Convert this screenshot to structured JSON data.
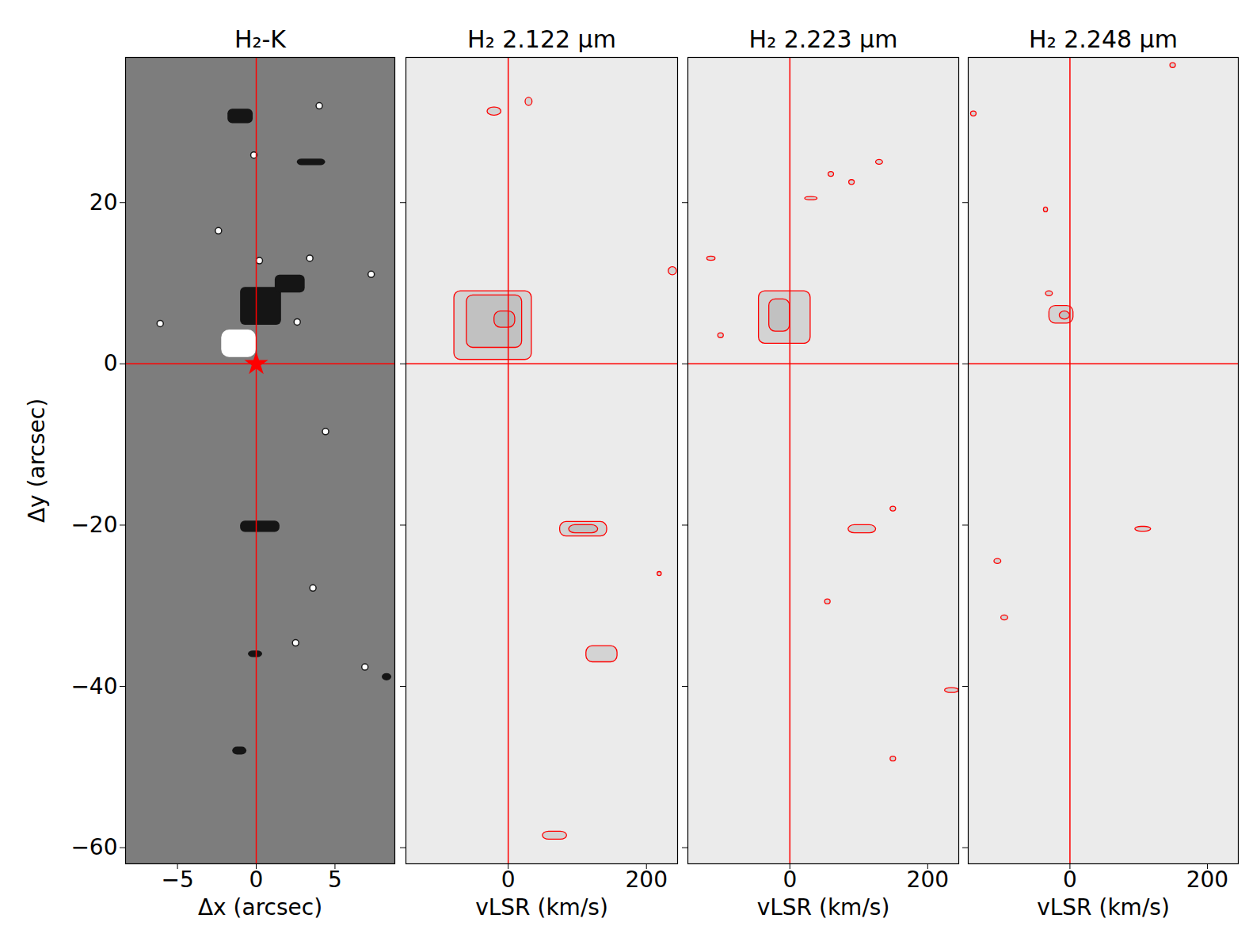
{
  "chart_data": [
    {
      "type": "image",
      "title": "H₂-K",
      "x_label": "Δx (arcsec)",
      "y_label": "Δy (arcsec)",
      "xlim": [
        -8.3,
        8.8
      ],
      "xticks": [
        -5,
        0,
        5
      ],
      "ylim": [
        -62,
        38
      ],
      "yticks": [
        -60,
        -40,
        -20,
        0,
        20
      ],
      "reference_x": 0,
      "reference_y": 0,
      "marker": "star",
      "dark_features": [
        {
          "x1": -1.8,
          "x2": -0.2,
          "y1": 29.8,
          "y2": 31.6
        },
        {
          "x1": 2.6,
          "x2": 4.4,
          "y1": 24.6,
          "y2": 25.4
        },
        {
          "x1": -1.0,
          "x2": 1.6,
          "y1": 4.8,
          "y2": 9.5
        },
        {
          "x1": 1.2,
          "x2": 3.1,
          "y1": 8.8,
          "y2": 11.0
        },
        {
          "x1": -1.0,
          "x2": 1.5,
          "y1": -20.9,
          "y2": -19.5
        },
        {
          "x1": -0.5,
          "x2": 0.4,
          "y1": -36.4,
          "y2": -35.6
        },
        {
          "x1": 8.0,
          "x2": 8.6,
          "y1": -39.3,
          "y2": -38.4
        },
        {
          "x1": -1.5,
          "x2": -0.6,
          "y1": -48.5,
          "y2": -47.5
        }
      ],
      "bright_features": [
        {
          "x1": -2.2,
          "x2": 0.0,
          "y1": 0.8,
          "y2": 4.2
        }
      ],
      "stars": [
        {
          "x": 4.0,
          "y": 32.0
        },
        {
          "x": -0.15,
          "y": 25.9
        },
        {
          "x": -2.4,
          "y": 16.5
        },
        {
          "x": 0.2,
          "y": 12.8
        },
        {
          "x": 3.4,
          "y": 13.1
        },
        {
          "x": 7.3,
          "y": 11.1
        },
        {
          "x": -6.1,
          "y": 5.0
        },
        {
          "x": 2.6,
          "y": 5.2
        },
        {
          "x": 4.4,
          "y": -8.4
        },
        {
          "x": 3.6,
          "y": -27.8
        },
        {
          "x": 2.5,
          "y": -34.6
        },
        {
          "x": 6.9,
          "y": -37.6
        }
      ]
    },
    {
      "type": "contour",
      "title": "H₂ 2.122 μm",
      "x_label": "vLSR (km/s)",
      "xlim": [
        -148,
        245
      ],
      "xticks": [
        0,
        200
      ],
      "ylim": [
        -62,
        38
      ],
      "yticks": [
        -60,
        -40,
        -20,
        0,
        20
      ],
      "tick_labels": "x",
      "reference_x": 0,
      "reference_y": 0,
      "contours": [
        {
          "x1": -78,
          "x2": 34,
          "y1": 0.5,
          "y2": 9.0
        },
        {
          "x1": -60,
          "x2": 20,
          "y1": 2.0,
          "y2": 8.5
        },
        {
          "x1": -20,
          "x2": 10,
          "y1": 4.5,
          "y2": 6.5
        },
        {
          "x1": -30,
          "x2": -10,
          "y1": 30.8,
          "y2": 31.8
        },
        {
          "x1": 25,
          "x2": 35,
          "y1": 32.0,
          "y2": 33.0
        },
        {
          "x1": 232,
          "x2": 244,
          "y1": 11.0,
          "y2": 12.0
        },
        {
          "x1": 75,
          "x2": 143,
          "y1": -21.4,
          "y2": -19.6
        },
        {
          "x1": 88,
          "x2": 130,
          "y1": -21.0,
          "y2": -20.0
        },
        {
          "x1": 113,
          "x2": 158,
          "y1": -37.0,
          "y2": -35.0
        },
        {
          "x1": 50,
          "x2": 85,
          "y1": -59.0,
          "y2": -58.0
        },
        {
          "x1": 216,
          "x2": 222,
          "y1": -26.3,
          "y2": -25.8
        }
      ]
    },
    {
      "type": "contour",
      "title": "H₂ 2.223 μm",
      "x_label": "vLSR (km/s)",
      "xlim": [
        -148,
        245
      ],
      "xticks": [
        0,
        200
      ],
      "ylim": [
        -62,
        38
      ],
      "yticks": [
        -60,
        -40,
        -20,
        0,
        20
      ],
      "tick_labels": "x",
      "reference_x": 0,
      "reference_y": 0,
      "contours": [
        {
          "x1": -45,
          "x2": 30,
          "y1": 2.5,
          "y2": 9.0
        },
        {
          "x1": -30,
          "x2": 0,
          "y1": 4.0,
          "y2": 8.0
        },
        {
          "x1": 85,
          "x2": 125,
          "y1": -21.0,
          "y2": -20.0
        },
        {
          "x1": -120,
          "x2": -108,
          "y1": 12.8,
          "y2": 13.3
        },
        {
          "x1": 22,
          "x2": 40,
          "y1": 20.3,
          "y2": 20.7
        },
        {
          "x1": 86,
          "x2": 94,
          "y1": 22.2,
          "y2": 22.8
        },
        {
          "x1": 125,
          "x2": 135,
          "y1": 24.7,
          "y2": 25.3
        },
        {
          "x1": 56,
          "x2": 64,
          "y1": 23.2,
          "y2": 23.8
        },
        {
          "x1": 225,
          "x2": 245,
          "y1": -40.8,
          "y2": -40.2
        },
        {
          "x1": -104,
          "x2": -96,
          "y1": 3.2,
          "y2": 3.8
        },
        {
          "x1": 51,
          "x2": 59,
          "y1": -29.8,
          "y2": -29.2
        },
        {
          "x1": 146,
          "x2": 154,
          "y1": -18.3,
          "y2": -17.7
        },
        {
          "x1": 146,
          "x2": 154,
          "y1": -49.3,
          "y2": -48.7
        }
      ]
    },
    {
      "type": "contour",
      "title": "H₂ 2.248 μm",
      "x_label": "vLSR (km/s)",
      "xlim": [
        -148,
        245
      ],
      "xticks": [
        0,
        200
      ],
      "ylim": [
        -62,
        38
      ],
      "yticks": [
        -60,
        -40,
        -20,
        0,
        20
      ],
      "tick_labels": "x",
      "reference_x": 0,
      "reference_y": 0,
      "contours": [
        {
          "x1": -30,
          "x2": 5,
          "y1": 5.0,
          "y2": 7.2
        },
        {
          "x1": -15,
          "x2": 0,
          "y1": 5.5,
          "y2": 6.5
        },
        {
          "x1": -35,
          "x2": -25,
          "y1": 8.4,
          "y2": 9.0
        },
        {
          "x1": 95,
          "x2": 118,
          "y1": -20.8,
          "y2": -20.2
        },
        {
          "x1": -110,
          "x2": -100,
          "y1": -24.8,
          "y2": -24.2
        },
        {
          "x1": -100,
          "x2": -90,
          "y1": -31.8,
          "y2": -31.2
        },
        {
          "x1": 146,
          "x2": 154,
          "y1": 36.7,
          "y2": 37.3
        },
        {
          "x1": -144,
          "x2": -136,
          "y1": 30.7,
          "y2": 31.3
        },
        {
          "x1": -38,
          "x2": -32,
          "y1": 18.8,
          "y2": 19.4
        }
      ]
    }
  ]
}
